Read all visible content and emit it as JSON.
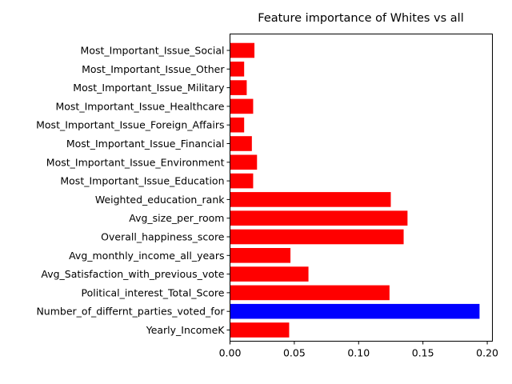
{
  "chart_data": {
    "type": "bar",
    "orientation": "horizontal",
    "title": "Feature importance of Whites vs all",
    "xlabel": "",
    "ylabel": "",
    "xlim": [
      0,
      0.204
    ],
    "xticks": [
      0.0,
      0.05,
      0.1,
      0.15,
      0.2
    ],
    "xtick_labels": [
      "0.00",
      "0.05",
      "0.10",
      "0.15",
      "0.20"
    ],
    "grid": false,
    "legend": "none",
    "colors": {
      "default": "#ff0000",
      "highlight": "#0000ff"
    },
    "categories": [
      "Most_Important_Issue_Social",
      "Most_Important_Issue_Other",
      "Most_Important_Issue_Military",
      "Most_Important_Issue_Healthcare",
      "Most_Important_Issue_Foreign_Affairs",
      "Most_Important_Issue_Financial",
      "Most_Important_Issue_Environment",
      "Most_Important_Issue_Education",
      "Weighted_education_rank",
      "Avg_size_per_room",
      "Overall_happiness_score",
      "Avg_monthly_income_all_years",
      "Avg_Satisfaction_with_previous_vote",
      "Political_interest_Total_Score",
      "Number_of_differnt_parties_voted_for",
      "Yearly_IncomeK"
    ],
    "values": [
      0.019,
      0.011,
      0.013,
      0.018,
      0.011,
      0.017,
      0.021,
      0.018,
      0.125,
      0.138,
      0.135,
      0.047,
      0.061,
      0.124,
      0.194,
      0.046
    ],
    "highlight_index": 14
  }
}
